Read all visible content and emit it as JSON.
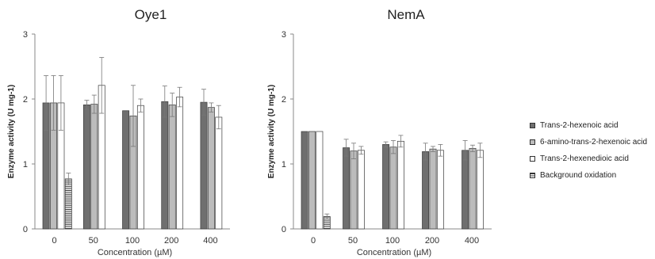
{
  "series_styles": [
    {
      "fill": "#6f6f6f",
      "pattern": "solid"
    },
    {
      "fill": "#bcbcbc",
      "pattern": "solid"
    },
    {
      "fill": "#ffffff",
      "pattern": "solid"
    },
    {
      "fill": "#ffffff",
      "pattern": "horizontal-stripes"
    }
  ],
  "legend": {
    "placement": "right",
    "entries": [
      "Trans-2-hexenoic acid",
      "6-amino-trans-2-hexenoic acid",
      "Trans-2-hexenedioic acid",
      "Background oxidation"
    ]
  },
  "chart_data": [
    {
      "type": "bar",
      "title": "Oye1",
      "xlabel": "Concentration (µM)",
      "ylabel": "Enzyme activity (U mg-1)",
      "ylim": [
        0,
        3
      ],
      "yticks": [
        "0",
        "1",
        "2",
        "3"
      ],
      "categories": [
        "0",
        "50",
        "100",
        "200",
        "400"
      ],
      "grid": false,
      "series": [
        {
          "name": "Trans-2-hexenoic acid",
          "values": [
            1.94,
            1.91,
            1.82,
            1.96,
            1.95
          ],
          "errors": [
            0.42,
            0.07,
            0.0,
            0.24,
            0.2
          ]
        },
        {
          "name": "6-amino-trans-2-hexenoic acid",
          "values": [
            1.94,
            1.92,
            1.74,
            1.91,
            1.87
          ],
          "errors": [
            0.42,
            0.14,
            0.47,
            0.18,
            0.07
          ]
        },
        {
          "name": "Trans-2-hexenedioic acid",
          "values": [
            1.94,
            2.21,
            1.9,
            2.03,
            1.72
          ],
          "errors": [
            0.42,
            0.43,
            0.1,
            0.15,
            0.18
          ]
        },
        {
          "name": "Background oxidation",
          "values": [
            0.77,
            null,
            null,
            null,
            null
          ],
          "errors": [
            0.09,
            null,
            null,
            null,
            null
          ]
        }
      ]
    },
    {
      "type": "bar",
      "title": "NemA",
      "xlabel": "Concentration (µM)",
      "ylabel": "Enzyme activity (U mg-1)",
      "ylim": [
        0,
        3
      ],
      "yticks": [
        "0",
        "1",
        "2",
        "3"
      ],
      "categories": [
        "0",
        "50",
        "100",
        "200",
        "400"
      ],
      "grid": false,
      "series": [
        {
          "name": "Trans-2-hexenoic acid",
          "values": [
            1.5,
            1.25,
            1.3,
            1.19,
            1.21
          ],
          "errors": [
            0.0,
            0.13,
            0.04,
            0.13,
            0.15
          ]
        },
        {
          "name": "6-amino-trans-2-hexenoic acid",
          "values": [
            1.5,
            1.2,
            1.26,
            1.23,
            1.24
          ],
          "errors": [
            0.0,
            0.12,
            0.1,
            0.04,
            0.05
          ]
        },
        {
          "name": "Trans-2-hexenedioic acid",
          "values": [
            1.5,
            1.21,
            1.35,
            1.21,
            1.21
          ],
          "errors": [
            0.0,
            0.06,
            0.09,
            0.09,
            0.11
          ]
        },
        {
          "name": "Background oxidation",
          "values": [
            0.19,
            null,
            null,
            null,
            null
          ],
          "errors": [
            0.04,
            null,
            null,
            null,
            null
          ]
        }
      ]
    }
  ]
}
